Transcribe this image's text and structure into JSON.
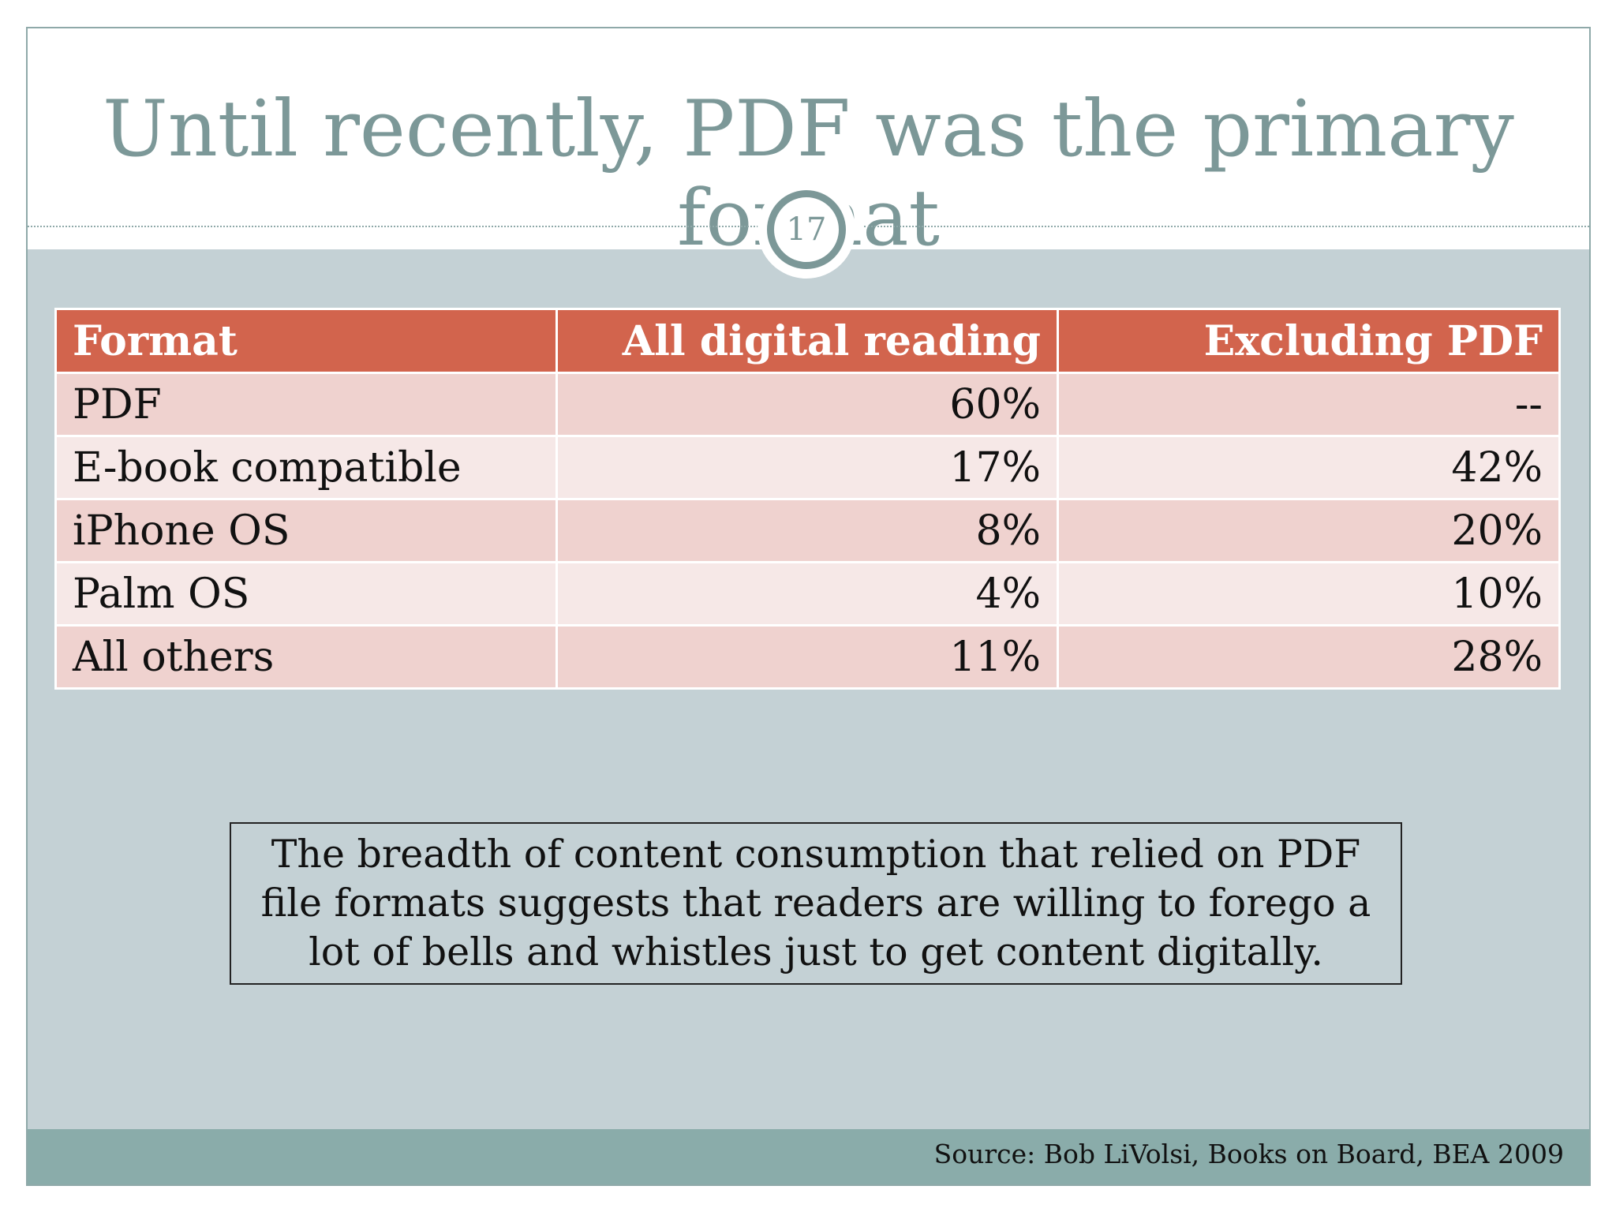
{
  "slide": {
    "title": "Until recently, PDF was the primary format",
    "page_number": "17"
  },
  "table": {
    "headers": [
      "Format",
      "All digital reading",
      "Excluding PDF"
    ],
    "rows": [
      [
        "PDF",
        "60%",
        "--"
      ],
      [
        "E-book compatible",
        "17%",
        "42%"
      ],
      [
        "iPhone OS",
        "8%",
        "20%"
      ],
      [
        "Palm OS",
        "4%",
        "10%"
      ],
      [
        "All others",
        "11%",
        "28%"
      ]
    ]
  },
  "note": "The breadth of content consumption that relied on PDF file formats suggests that readers are willing to forego a lot of bells and whistles just to get content digitally.",
  "footer": {
    "source": "Source: Bob LiVolsi, Books on Board, BEA 2009"
  },
  "colors": {
    "title": "#7c9898",
    "header_bg": "#d2644d",
    "row_odd": "#efd2cf",
    "row_even": "#f6e8e7",
    "body_bg": "#c4d1d5",
    "footer_bg": "#8aacaa"
  }
}
